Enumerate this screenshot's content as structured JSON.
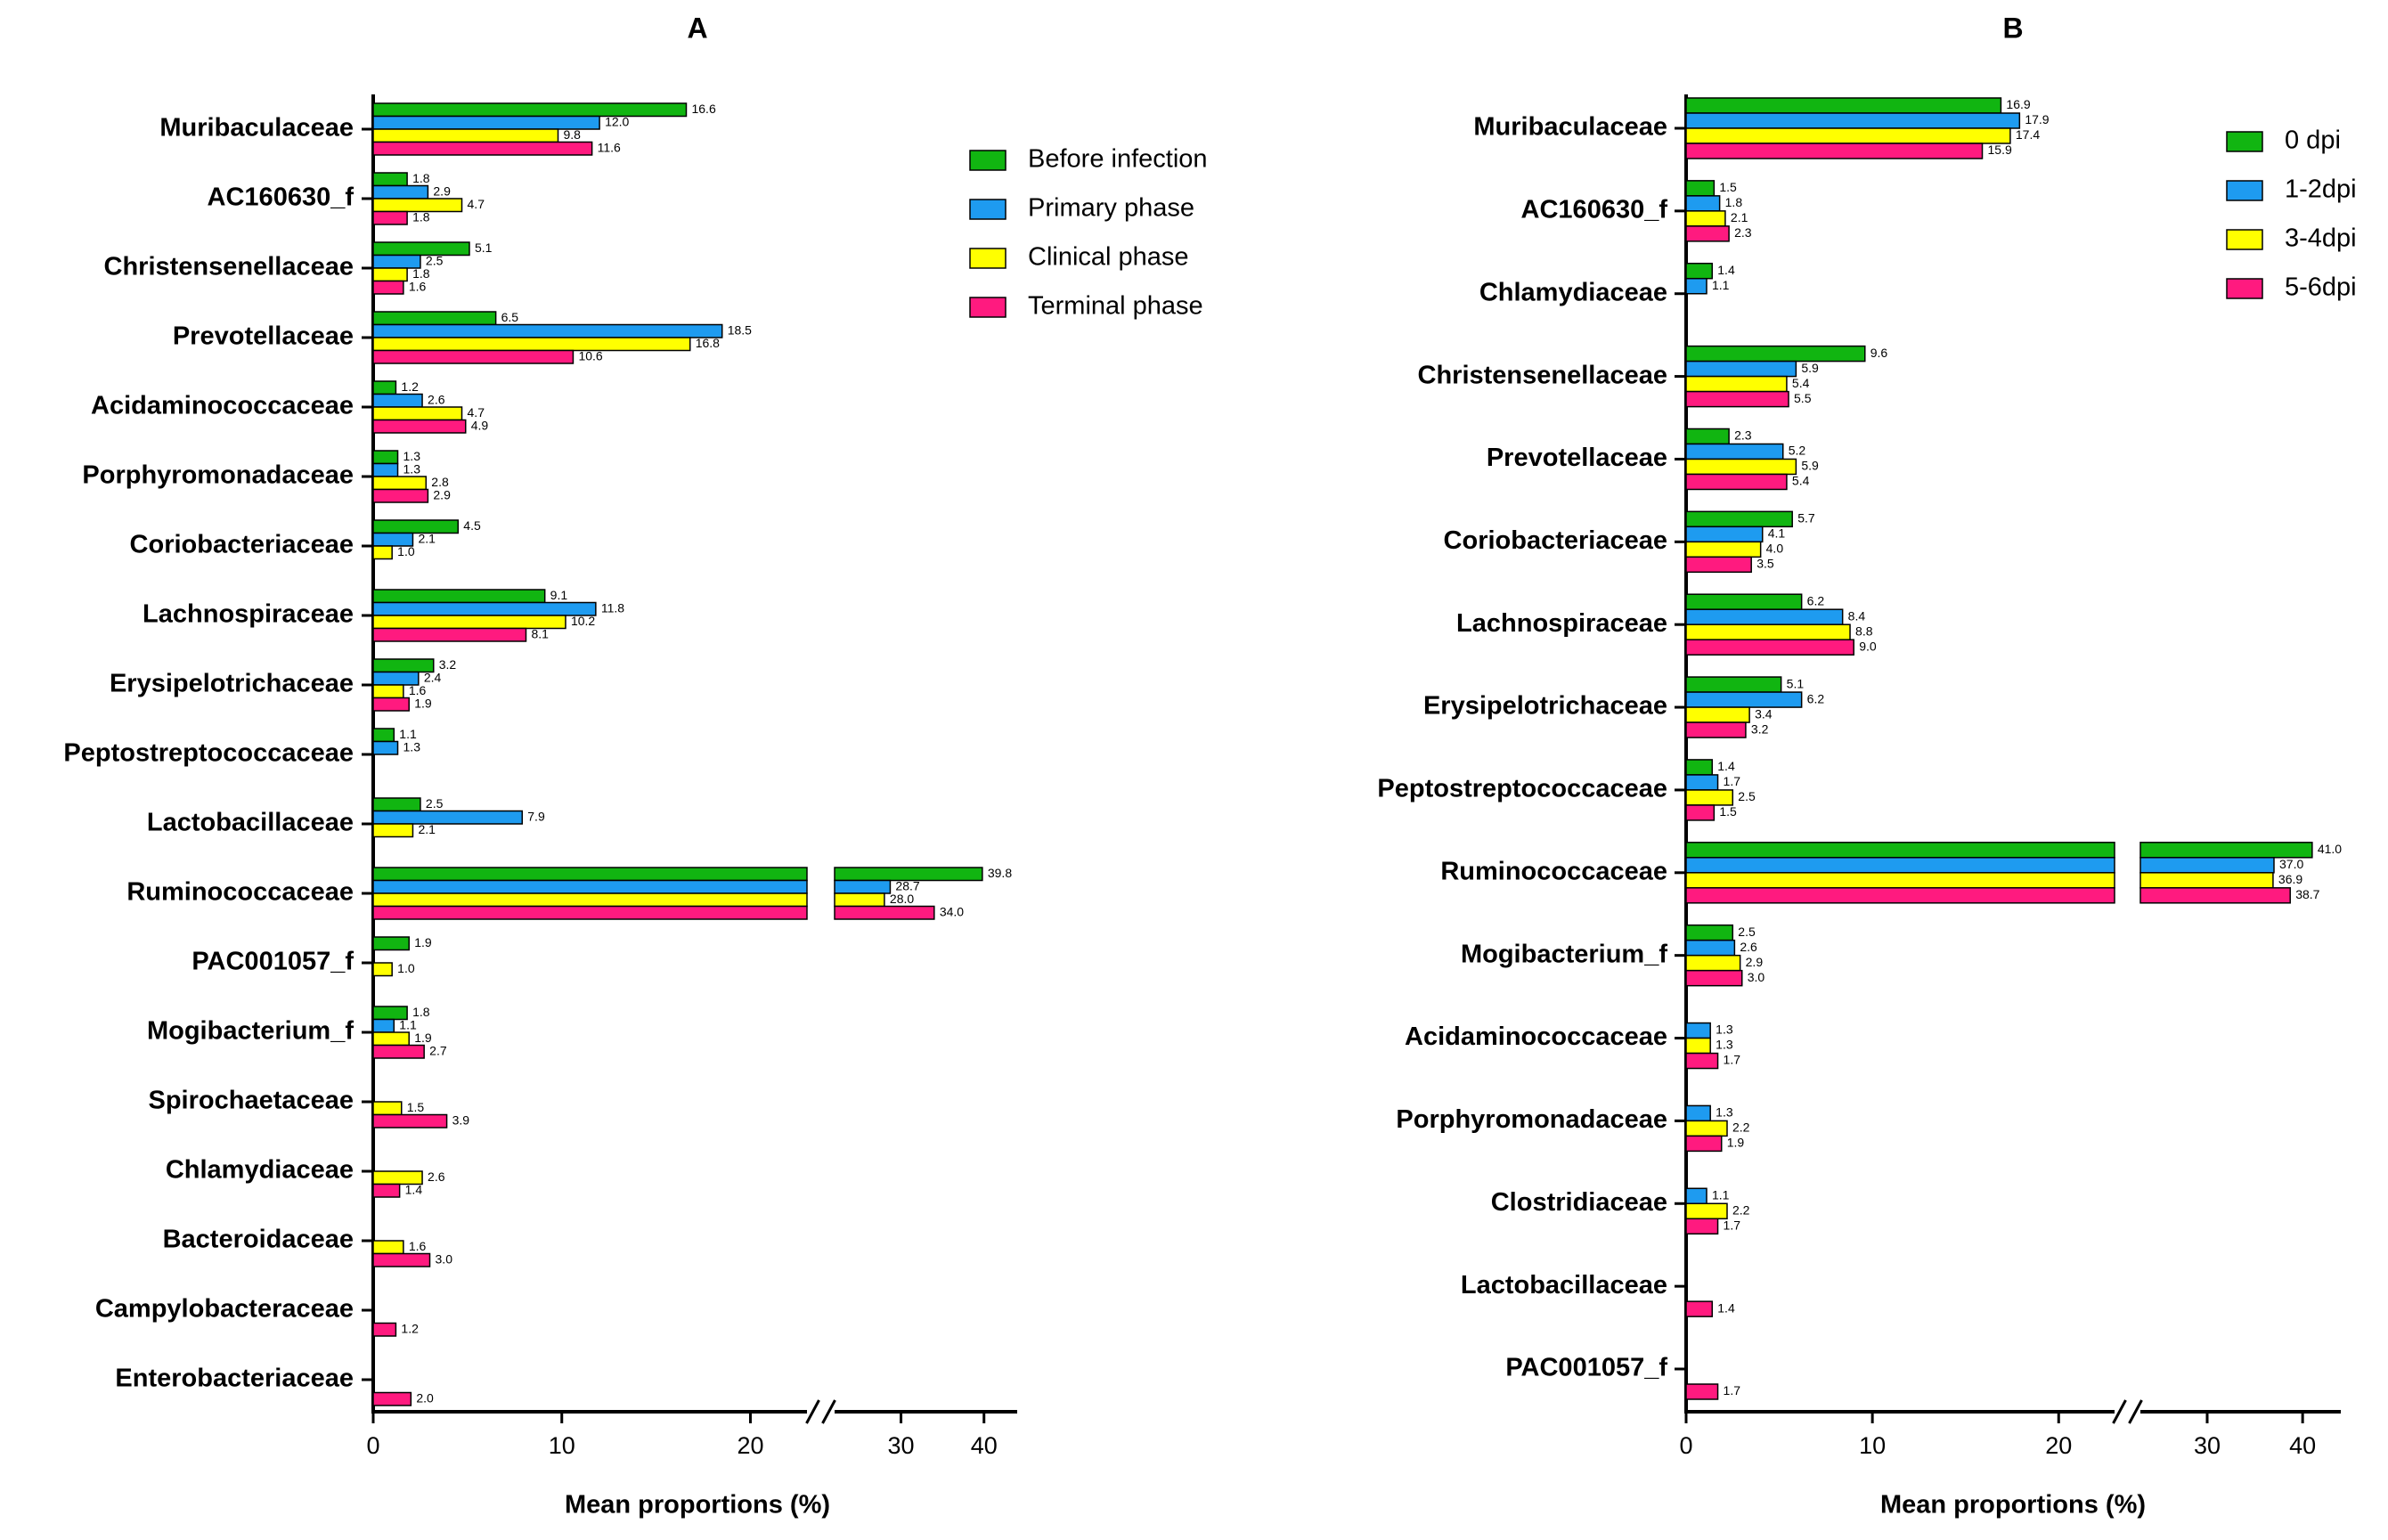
{
  "chart_data": [
    {
      "type": "bar",
      "orientation": "horizontal",
      "title": "A",
      "x_label": "Mean proportions (%)",
      "categories": [
        "Muribaculaceae",
        "AC160630_f",
        "Christensenellaceae",
        "Prevotellaceae",
        "Acidaminococcaceae",
        "Porphyromonadaceae",
        "Coriobacteriaceae",
        "Lachnospiraceae",
        "Erysipelotrichaceae",
        "Peptostreptococcaceae",
        "Lactobacillaceae",
        "Ruminococcaceae",
        "PAC001057_f",
        "Mogibacterium_f",
        "Spirochaetaceae",
        "Chlamydiaceae",
        "Bacteroidaceae",
        "Campylobacteraceae",
        "Enterobacteriaceae"
      ],
      "series": [
        {
          "name": "Before infection",
          "color": "#11b511",
          "values": [
            16.6,
            1.8,
            5.1,
            6.5,
            1.2,
            1.3,
            4.5,
            9.1,
            3.2,
            1.1,
            2.5,
            39.8,
            1.9,
            1.8,
            null,
            null,
            null,
            null,
            null
          ],
          "value_labels": [
            "16.6",
            "1.8",
            "5.1",
            "6.5",
            "1.2",
            "1.3",
            "4.5",
            "9.1",
            "3.2",
            "1.1",
            "2.5",
            "39.8",
            "1.9",
            "1.8",
            null,
            null,
            null,
            null,
            null
          ]
        },
        {
          "name": "Primary phase",
          "color": "#1e9bf0",
          "values": [
            12.0,
            2.9,
            2.5,
            18.5,
            2.6,
            1.3,
            2.1,
            11.8,
            2.4,
            1.3,
            7.9,
            28.7,
            null,
            1.1,
            null,
            null,
            null,
            null,
            null
          ],
          "value_labels": [
            "12.0",
            "2.9",
            "2.5",
            "18.5",
            "2.6",
            "1.3",
            "2.1",
            "11.8",
            "2.4",
            "1.3",
            "7.9",
            "28.7",
            null,
            "1.1",
            null,
            null,
            null,
            null,
            null
          ]
        },
        {
          "name": "Clinical phase",
          "color": "#ffff00",
          "values": [
            9.8,
            4.7,
            1.8,
            16.8,
            4.7,
            2.8,
            1.0,
            10.2,
            1.6,
            null,
            2.1,
            28.0,
            1.0,
            1.9,
            1.5,
            2.6,
            1.6,
            null,
            null
          ],
          "value_labels": [
            "9.8",
            "4.7",
            "1.8",
            "16.8",
            "4.7",
            "2.8",
            "1.0",
            "10.2",
            "1.6",
            null,
            "2.1",
            "28.0",
            "1.0",
            "1.9",
            "1.5",
            "2.6",
            "1.6",
            null,
            null
          ]
        },
        {
          "name": "Terminal phase",
          "color": "#ff1a7f",
          "values": [
            11.6,
            1.8,
            1.6,
            10.6,
            4.9,
            2.9,
            null,
            8.1,
            1.9,
            null,
            null,
            34.0,
            null,
            2.7,
            3.9,
            1.4,
            3.0,
            1.2,
            2.0
          ],
          "value_labels": [
            "11.6",
            "1.8",
            "1.6",
            "10.6",
            "4.9",
            "2.9",
            null,
            "8.1",
            "1.9",
            null,
            null,
            "34.0",
            null,
            "2.7",
            "3.9",
            "1.4",
            "3.0",
            "1.2",
            "2.0"
          ]
        }
      ],
      "axis_segments": [
        {
          "xlim": [
            0,
            23
          ],
          "xticks": [
            0,
            10,
            20
          ]
        },
        {
          "xlim": [
            22,
            44
          ],
          "xticks": [
            30,
            40
          ]
        }
      ],
      "legend": "upper right"
    },
    {
      "type": "bar",
      "orientation": "horizontal",
      "title": "B",
      "x_label": "Mean proportions (%)",
      "categories": [
        "Muribaculaceae",
        "AC160630_f",
        "Chlamydiaceae",
        "Christensenellaceae",
        "Prevotellaceae",
        "Coriobacteriaceae",
        "Lachnospiraceae",
        "Erysipelotrichaceae",
        "Peptostreptococcaceae",
        "Ruminococcaceae",
        "Mogibacterium_f",
        "Acidaminococcaceae",
        "Porphyromonadaceae",
        "Clostridiaceae",
        "Lactobacillaceae",
        "PAC001057_f"
      ],
      "series": [
        {
          "name": "0 dpi",
          "color": "#11b511",
          "values": [
            16.9,
            1.5,
            1.4,
            9.6,
            2.3,
            5.7,
            6.2,
            5.1,
            1.4,
            41.0,
            2.5,
            null,
            null,
            null,
            null,
            null
          ],
          "value_labels": [
            "16.9",
            "1.5",
            "1.4",
            "9.6",
            "2.3",
            "5.7",
            "6.2",
            "5.1",
            "1.4",
            "41.0",
            "2.5",
            null,
            null,
            null,
            null,
            null
          ]
        },
        {
          "name": "1-2dpi",
          "color": "#1e9bf0",
          "values": [
            17.9,
            1.8,
            1.1,
            5.9,
            5.2,
            4.1,
            8.4,
            6.2,
            1.7,
            37.0,
            2.6,
            1.3,
            1.3,
            1.1,
            null,
            null
          ],
          "value_labels": [
            "17.9",
            "1.8",
            "1.1",
            "5.9",
            "5.2",
            "4.1",
            "8.4",
            "6.2",
            "1.7",
            "37.0",
            "2.6",
            "1.3",
            "1.3",
            "1.1",
            null,
            null
          ]
        },
        {
          "name": "3-4dpi",
          "color": "#ffff00",
          "values": [
            17.4,
            2.1,
            null,
            5.4,
            5.9,
            4.0,
            8.8,
            3.4,
            2.5,
            36.9,
            2.9,
            1.3,
            2.2,
            2.2,
            null,
            null
          ],
          "value_labels": [
            "17.4",
            "2.1",
            null,
            "5.4",
            "5.9",
            "4.0",
            "8.8",
            "3.4",
            "2.5",
            "36.9",
            "2.9",
            "1.3",
            "2.2",
            "2.2",
            null,
            null
          ]
        },
        {
          "name": "5-6dpi",
          "color": "#ff1a7f",
          "values": [
            15.9,
            2.3,
            null,
            5.5,
            5.4,
            3.5,
            9.0,
            3.2,
            1.5,
            38.7,
            3.0,
            1.7,
            1.9,
            1.7,
            1.4,
            1.7
          ],
          "value_labels": [
            "15.9",
            "2.3",
            null,
            "5.5",
            "5.4",
            "3.5",
            "9.0",
            "3.2",
            "1.5",
            "38.7",
            "3.0",
            "1.7",
            "1.9",
            "1.7",
            "1.4",
            "1.7"
          ]
        }
      ],
      "axis_segments": [
        {
          "xlim": [
            0,
            23
          ],
          "xticks": [
            0,
            10,
            20
          ]
        },
        {
          "xlim": [
            23,
            44
          ],
          "xticks": [
            30,
            40
          ]
        }
      ],
      "legend": "upper right"
    }
  ]
}
